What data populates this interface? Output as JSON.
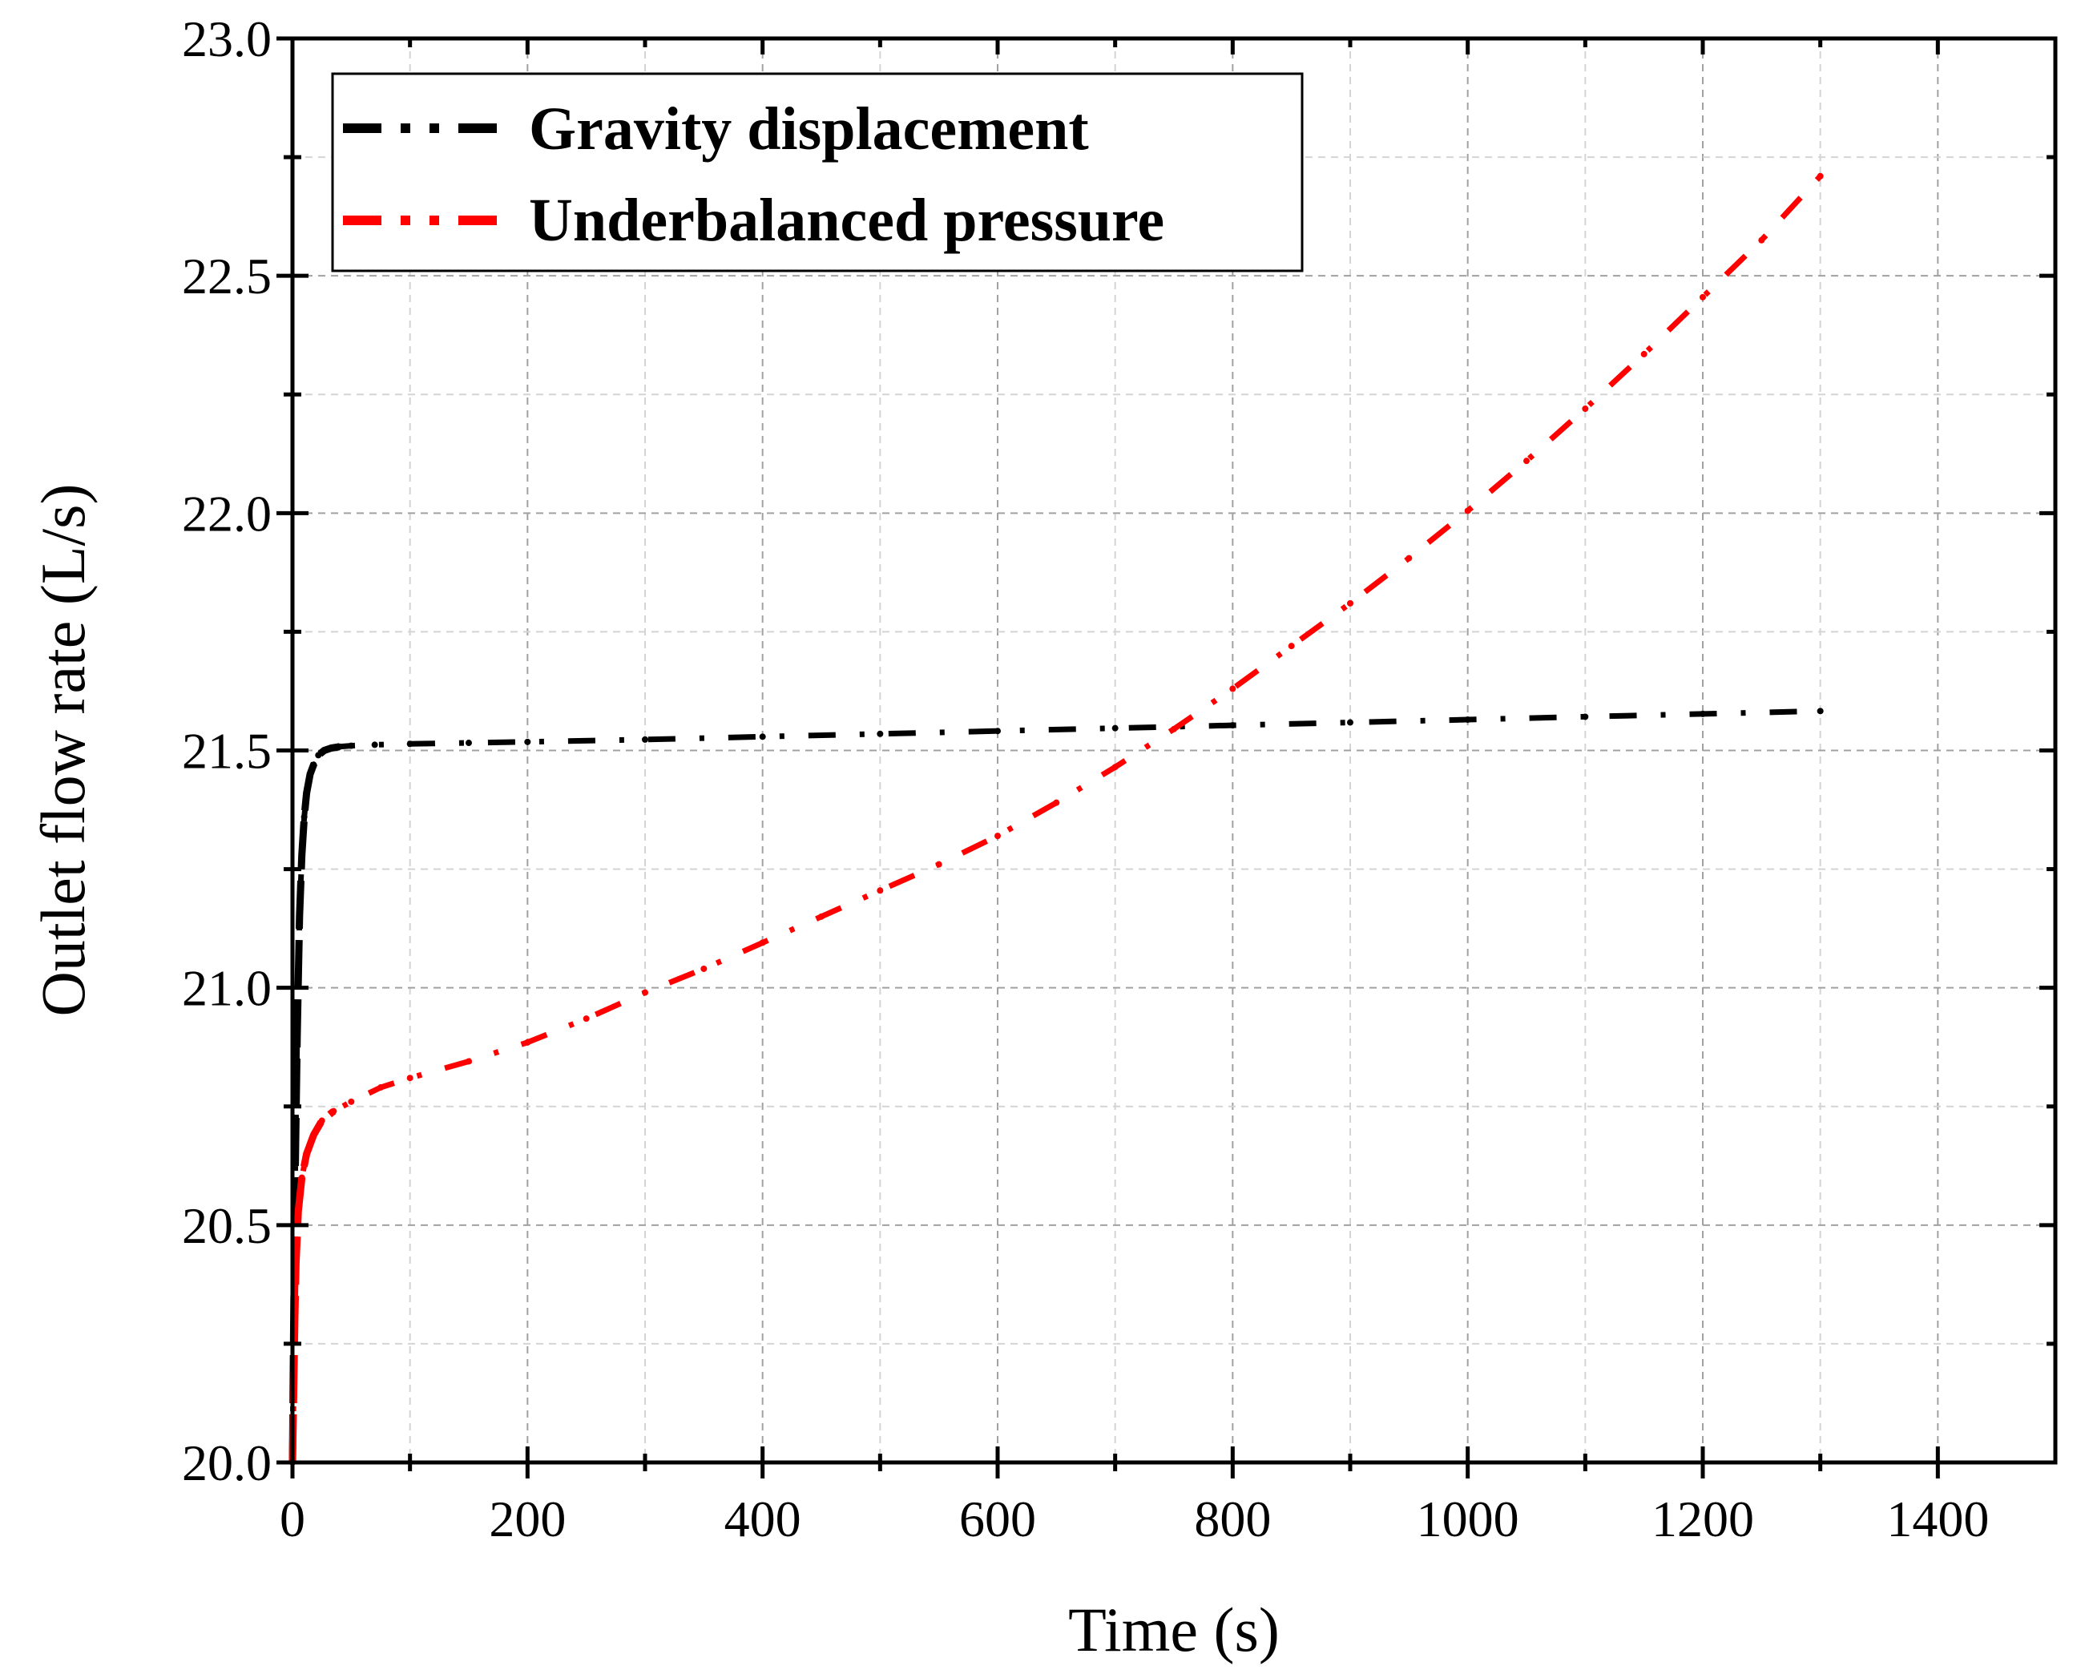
{
  "chart_data": {
    "type": "line",
    "title": "",
    "xlabel": "Time (s)",
    "ylabel": "Outlet flow rate (L/s)",
    "xlim": [
      0,
      1500
    ],
    "ylim": [
      20.0,
      23.0
    ],
    "xticks": [
      0,
      200,
      400,
      600,
      800,
      1000,
      1200,
      1400
    ],
    "xtick_labels": [
      "0",
      "200",
      "400",
      "600",
      "800",
      "1000",
      "1200",
      "1400"
    ],
    "yticks": [
      20.0,
      20.5,
      21.0,
      21.5,
      22.0,
      22.5,
      23.0
    ],
    "ytick_labels": [
      "20.0",
      "20.5",
      "21.0",
      "21.5",
      "22.0",
      "22.5",
      "23.0"
    ],
    "grid": true,
    "legend_position": "top-left",
    "series": [
      {
        "name": "Gravity displacement",
        "color": "#000000",
        "x": [
          0,
          2,
          4,
          6,
          8,
          10,
          12,
          15,
          18,
          22,
          27,
          33,
          40,
          50,
          70,
          100,
          150,
          200,
          300,
          400,
          500,
          600,
          700,
          800,
          900,
          1000,
          1100,
          1200,
          1300
        ],
        "y": [
          20.0,
          20.55,
          20.9,
          21.15,
          21.28,
          21.36,
          21.41,
          21.45,
          21.47,
          21.49,
          21.5,
          21.505,
          21.508,
          21.51,
          21.512,
          21.514,
          21.516,
          21.518,
          21.523,
          21.529,
          21.535,
          21.541,
          21.547,
          21.553,
          21.559,
          21.565,
          21.571,
          21.577,
          21.583
        ]
      },
      {
        "name": "Underbalanced pressure",
        "color": "#ff0000",
        "x": [
          0,
          1,
          2,
          3,
          5,
          8,
          12,
          18,
          25,
          35,
          50,
          75,
          100,
          150,
          200,
          250,
          300,
          350,
          400,
          450,
          500,
          550,
          600,
          650,
          700,
          750,
          800,
          850,
          900,
          950,
          1000,
          1050,
          1100,
          1150,
          1200,
          1250,
          1300
        ],
        "y": [
          20.0,
          20.15,
          20.3,
          20.42,
          20.53,
          20.6,
          20.65,
          20.69,
          20.72,
          20.74,
          20.76,
          20.79,
          20.81,
          20.845,
          20.885,
          20.935,
          20.99,
          21.04,
          21.095,
          21.15,
          21.205,
          21.26,
          21.32,
          21.39,
          21.465,
          21.545,
          21.63,
          21.72,
          21.81,
          21.905,
          22.005,
          22.11,
          22.22,
          22.335,
          22.455,
          22.575,
          22.71
        ]
      }
    ]
  }
}
